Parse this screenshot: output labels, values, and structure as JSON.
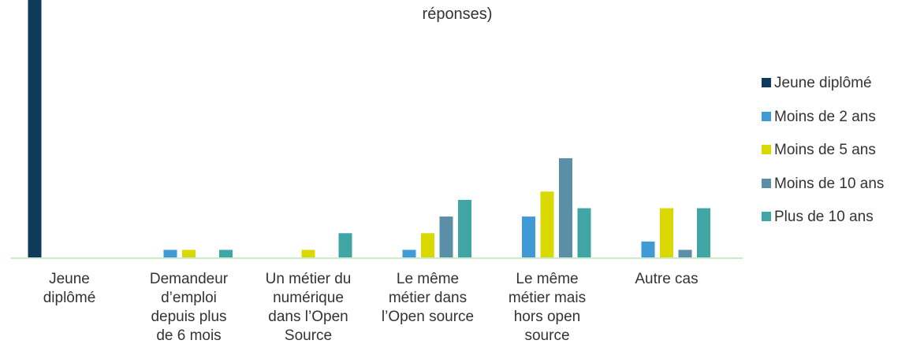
{
  "chart_data": {
    "type": "bar",
    "title": "réponses)",
    "categories": [
      "Jeune\ndiplômé",
      "Demandeur\nd’emploi\ndepuis plus\nde 6 mois",
      "Un métier du\nnumérique\ndans l’Open\nSource",
      "Le même\nmétier dans\nl’Open source",
      "Le même\nmétier mais\nhors open\nsource",
      "Autre cas"
    ],
    "series": [
      {
        "name": "Jeune diplômé",
        "color": "#0e3a5c",
        "values": [
          31,
          0,
          0,
          0,
          0,
          0
        ]
      },
      {
        "name": "Moins de 2 ans",
        "color": "#3f9ad6",
        "values": [
          0,
          1,
          0,
          1,
          5,
          2
        ]
      },
      {
        "name": "Moins de 5 ans",
        "color": "#d9d900",
        "values": [
          0,
          1,
          1,
          3,
          8,
          6
        ]
      },
      {
        "name": "Moins de 10 ans",
        "color": "#5b8fa8",
        "values": [
          0,
          0,
          0,
          5,
          12,
          1
        ]
      },
      {
        "name": "Plus de 10 ans",
        "color": "#40a5a5",
        "values": [
          0,
          1,
          3,
          7,
          6,
          6
        ]
      }
    ],
    "ylim": [
      0,
      31
    ],
    "legend": "right"
  }
}
